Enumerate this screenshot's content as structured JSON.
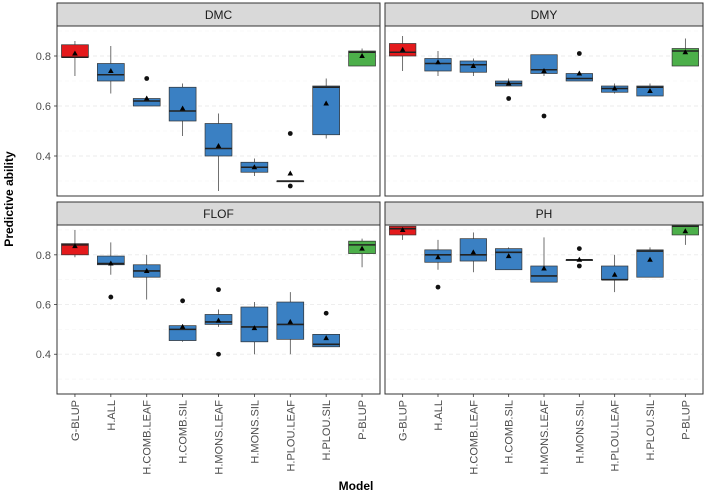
{
  "chart_data": {
    "type": "boxplot",
    "xlabel": "Model",
    "ylabel": "Predictive ability",
    "models": [
      "G-BLUP",
      "H.ALL",
      "H.COMB.LEAF",
      "H.COMB.SIL",
      "H.MONS.LEAF",
      "H.MONS.SIL",
      "H.PLOU.LEAF",
      "H.PLOU.SIL",
      "P-BLUP"
    ],
    "model_colors": [
      "#e41a1c",
      "#3a80c3",
      "#3a80c3",
      "#3a80c3",
      "#3a80c3",
      "#3a80c3",
      "#3a80c3",
      "#3a80c3",
      "#4caf4a"
    ],
    "y_ticks": [
      0.4,
      0.6,
      0.8
    ],
    "y_tick_labels": [
      "0.4",
      "0.6",
      "0.8"
    ],
    "ylim": [
      0.24,
      0.92
    ],
    "facets": [
      {
        "title": "DMC",
        "stats": [
          {
            "min": 0.72,
            "q1": 0.795,
            "median": 0.795,
            "q3": 0.845,
            "max": 0.86,
            "mean": 0.81,
            "outliers": []
          },
          {
            "min": 0.65,
            "q1": 0.7,
            "median": 0.725,
            "q3": 0.77,
            "max": 0.84,
            "mean": 0.74,
            "outliers": []
          },
          {
            "min": 0.6,
            "q1": 0.6,
            "median": 0.62,
            "q3": 0.63,
            "max": 0.64,
            "mean": 0.63,
            "outliers": [
              0.71
            ]
          },
          {
            "min": 0.48,
            "q1": 0.54,
            "median": 0.58,
            "q3": 0.675,
            "max": 0.69,
            "mean": 0.59,
            "outliers": []
          },
          {
            "min": 0.26,
            "q1": 0.4,
            "median": 0.43,
            "q3": 0.53,
            "max": 0.57,
            "mean": 0.44,
            "outliers": []
          },
          {
            "min": 0.32,
            "q1": 0.335,
            "median": 0.355,
            "q3": 0.375,
            "max": 0.39,
            "mean": 0.355,
            "outliers": []
          },
          {
            "min": 0.3,
            "q1": 0.3,
            "median": 0.3,
            "q3": 0.3,
            "max": 0.3,
            "mean": 0.33,
            "outliers": [
              0.49,
              0.28
            ]
          },
          {
            "min": 0.47,
            "q1": 0.485,
            "median": 0.675,
            "q3": 0.68,
            "max": 0.71,
            "mean": 0.61,
            "outliers": []
          },
          {
            "min": 0.76,
            "q1": 0.76,
            "median": 0.815,
            "q3": 0.82,
            "max": 0.83,
            "mean": 0.8,
            "outliers": []
          }
        ]
      },
      {
        "title": "DMY",
        "stats": [
          {
            "min": 0.74,
            "q1": 0.8,
            "median": 0.815,
            "q3": 0.85,
            "max": 0.88,
            "mean": 0.825,
            "outliers": []
          },
          {
            "min": 0.72,
            "q1": 0.74,
            "median": 0.77,
            "q3": 0.79,
            "max": 0.82,
            "mean": 0.775,
            "outliers": []
          },
          {
            "min": 0.72,
            "q1": 0.735,
            "median": 0.765,
            "q3": 0.78,
            "max": 0.79,
            "mean": 0.76,
            "outliers": []
          },
          {
            "min": 0.68,
            "q1": 0.68,
            "median": 0.69,
            "q3": 0.7,
            "max": 0.71,
            "mean": 0.69,
            "outliers": [
              0.63
            ]
          },
          {
            "min": 0.72,
            "q1": 0.73,
            "median": 0.745,
            "q3": 0.805,
            "max": 0.805,
            "mean": 0.74,
            "outliers": [
              0.56
            ]
          },
          {
            "min": 0.7,
            "q1": 0.7,
            "median": 0.71,
            "q3": 0.73,
            "max": 0.73,
            "mean": 0.73,
            "outliers": [
              0.81
            ]
          },
          {
            "min": 0.65,
            "q1": 0.655,
            "median": 0.67,
            "q3": 0.68,
            "max": 0.69,
            "mean": 0.67,
            "outliers": []
          },
          {
            "min": 0.64,
            "q1": 0.64,
            "median": 0.675,
            "q3": 0.68,
            "max": 0.69,
            "mean": 0.66,
            "outliers": []
          },
          {
            "min": 0.76,
            "q1": 0.76,
            "median": 0.82,
            "q3": 0.83,
            "max": 0.87,
            "mean": 0.815,
            "outliers": []
          }
        ]
      },
      {
        "title": "FLOF",
        "stats": [
          {
            "min": 0.79,
            "q1": 0.8,
            "median": 0.84,
            "q3": 0.845,
            "max": 0.9,
            "mean": 0.835,
            "outliers": []
          },
          {
            "min": 0.72,
            "q1": 0.76,
            "median": 0.765,
            "q3": 0.795,
            "max": 0.85,
            "mean": 0.765,
            "outliers": [
              0.63
            ]
          },
          {
            "min": 0.62,
            "q1": 0.71,
            "median": 0.735,
            "q3": 0.76,
            "max": 0.8,
            "mean": 0.735,
            "outliers": []
          },
          {
            "min": 0.45,
            "q1": 0.455,
            "median": 0.5,
            "q3": 0.515,
            "max": 0.52,
            "mean": 0.51,
            "outliers": [
              0.615
            ]
          },
          {
            "min": 0.51,
            "q1": 0.52,
            "median": 0.53,
            "q3": 0.56,
            "max": 0.58,
            "mean": 0.535,
            "outliers": [
              0.66,
              0.4
            ]
          },
          {
            "min": 0.4,
            "q1": 0.45,
            "median": 0.51,
            "q3": 0.59,
            "max": 0.61,
            "mean": 0.505,
            "outliers": []
          },
          {
            "min": 0.4,
            "q1": 0.46,
            "median": 0.52,
            "q3": 0.61,
            "max": 0.65,
            "mean": 0.53,
            "outliers": []
          },
          {
            "min": 0.43,
            "q1": 0.43,
            "median": 0.44,
            "q3": 0.48,
            "max": 0.48,
            "mean": 0.465,
            "outliers": [
              0.565
            ]
          },
          {
            "min": 0.75,
            "q1": 0.805,
            "median": 0.84,
            "q3": 0.855,
            "max": 0.865,
            "mean": 0.825,
            "outliers": []
          }
        ]
      },
      {
        "title": "PH",
        "stats": [
          {
            "min": 0.86,
            "q1": 0.88,
            "median": 0.905,
            "q3": 0.915,
            "max": 0.915,
            "mean": 0.9,
            "outliers": []
          },
          {
            "min": 0.74,
            "q1": 0.77,
            "median": 0.8,
            "q3": 0.82,
            "max": 0.86,
            "mean": 0.79,
            "outliers": [
              0.67
            ]
          },
          {
            "min": 0.73,
            "q1": 0.775,
            "median": 0.8,
            "q3": 0.865,
            "max": 0.89,
            "mean": 0.81,
            "outliers": []
          },
          {
            "min": 0.74,
            "q1": 0.74,
            "median": 0.81,
            "q3": 0.825,
            "max": 0.83,
            "mean": 0.795,
            "outliers": []
          },
          {
            "min": 0.69,
            "q1": 0.69,
            "median": 0.715,
            "q3": 0.755,
            "max": 0.87,
            "mean": 0.745,
            "outliers": []
          },
          {
            "min": 0.78,
            "q1": 0.78,
            "median": 0.78,
            "q3": 0.78,
            "max": 0.78,
            "mean": 0.78,
            "outliers": [
              0.825,
              0.755
            ]
          },
          {
            "min": 0.65,
            "q1": 0.7,
            "median": 0.7,
            "q3": 0.755,
            "max": 0.8,
            "mean": 0.72,
            "outliers": []
          },
          {
            "min": 0.71,
            "q1": 0.71,
            "median": 0.815,
            "q3": 0.82,
            "max": 0.83,
            "mean": 0.78,
            "outliers": []
          },
          {
            "min": 0.84,
            "q1": 0.88,
            "median": 0.915,
            "q3": 0.92,
            "max": 0.92,
            "mean": 0.895,
            "outliers": []
          }
        ]
      }
    ]
  }
}
